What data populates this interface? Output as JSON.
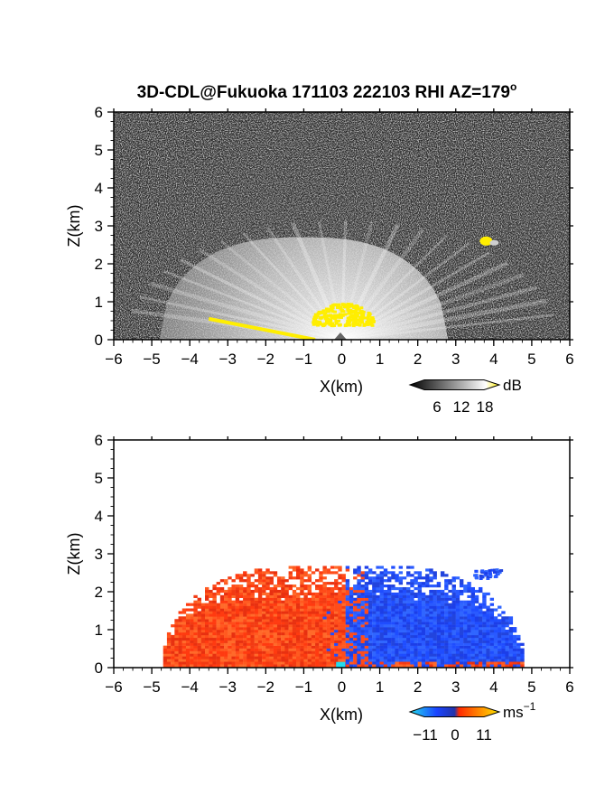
{
  "title": "3D-CDL@Fukuoka 171103 222103 RHI AZ=179",
  "title_superscript": "o",
  "chart_data": [
    {
      "type": "heatmap",
      "quantity": "reflectivity",
      "xlabel": "X(km)",
      "ylabel": "Z(km)",
      "xlim": [
        -6,
        6
      ],
      "ylim": [
        0,
        6
      ],
      "xticks": [
        "-6",
        "-5",
        "-4",
        "-3",
        "-2",
        "-1",
        "0",
        "1",
        "2",
        "3",
        "4",
        "5",
        "6"
      ],
      "yticks": [
        "0",
        "1",
        "2",
        "3",
        "4",
        "5",
        "6"
      ],
      "colorbar": {
        "unit": "dB",
        "ticks": [
          "6",
          "12",
          "18"
        ],
        "tick_values": [
          6,
          12,
          18
        ],
        "range": [
          0,
          21
        ],
        "colors": [
          "#000000",
          "#ffffff",
          "#ffee00"
        ]
      },
      "background_color": "#2b2b2b",
      "features": {
        "echo_fan": {
          "x_min": -4.8,
          "x_max": 2.8,
          "z_top": 2.7,
          "origin_x": 0,
          "origin_z": 0
        },
        "strong_echo_near_origin": {
          "x_min": -0.8,
          "x_max": 0.8,
          "z_min": 0.4,
          "z_max": 1.0
        },
        "isolated_target": {
          "x": 3.8,
          "z": 2.6
        },
        "ground_clutter_line": {
          "x_start": -3.5,
          "z_start": 0.55,
          "x_end": -0.7,
          "z_end": 0.0
        }
      }
    },
    {
      "type": "heatmap",
      "quantity": "doppler_velocity",
      "xlabel": "X(km)",
      "ylabel": "Z(km)",
      "xlim": [
        -6,
        6
      ],
      "ylim": [
        0,
        6
      ],
      "xticks": [
        "-6",
        "-5",
        "-4",
        "-3",
        "-2",
        "-1",
        "0",
        "1",
        "2",
        "3",
        "4",
        "5",
        "6"
      ],
      "yticks": [
        "0",
        "1",
        "2",
        "3",
        "4",
        "5",
        "6"
      ],
      "colorbar": {
        "unit": "ms",
        "unit_superscript": "−1",
        "ticks": [
          "−11",
          "0",
          "11"
        ],
        "tick_values": [
          -11,
          0,
          11
        ],
        "range": [
          -14,
          14
        ],
        "colors": [
          "#22ddee",
          "#1a44ff",
          "#ff2a00",
          "#ffe600"
        ]
      },
      "features": {
        "negative_region": {
          "x_min": -4.8,
          "x_max": 0.0,
          "z_max": 2.8,
          "velocity": 3
        },
        "positive_region": {
          "x_min": 0.0,
          "x_max": 4.8,
          "z_max": 2.8,
          "velocity": -5
        },
        "cloud_top_patch": {
          "x": 3.8,
          "z": 2.5,
          "velocity": -5
        }
      }
    }
  ]
}
